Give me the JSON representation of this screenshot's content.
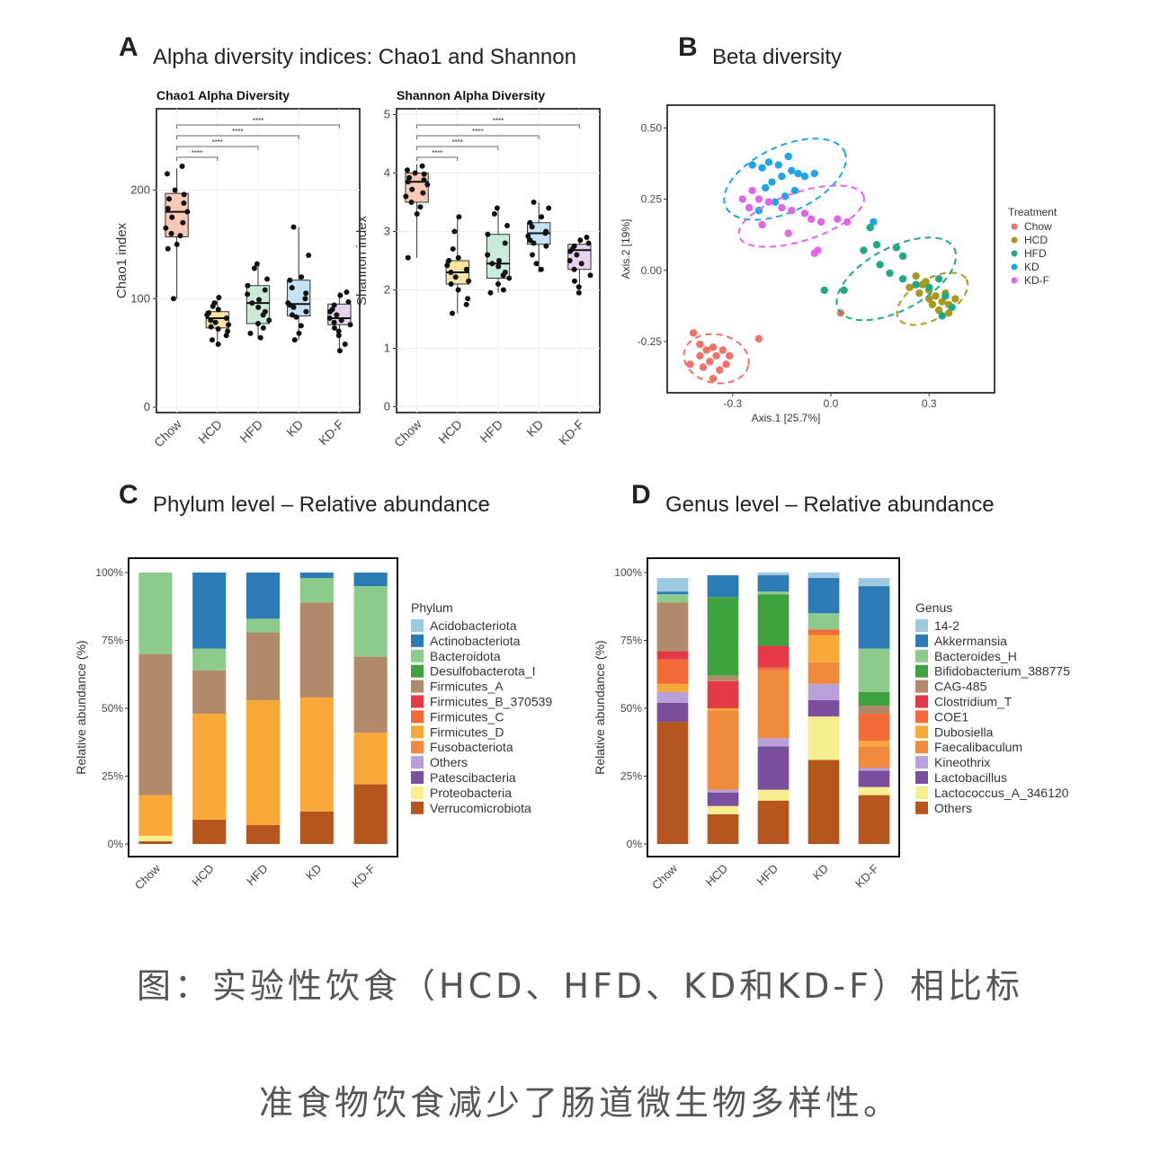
{
  "panels": {
    "a": {
      "letter": "A",
      "title": "Alpha  diversity indices: Chao1 and Shannon"
    },
    "b": {
      "letter": "B",
      "title": "Beta diversity"
    },
    "c": {
      "letter": "C",
      "title": "Phylum   level – Relative  abundance"
    },
    "d": {
      "letter": "D",
      "title": "Genus   level – Relative  abundance"
    }
  },
  "caption": {
    "line1": "图：实验性饮食（HCD、HFD、KD和KD-F）相比标",
    "line2": "准食物饮食减少了肠道微生物多样性。"
  },
  "colors": {
    "Chow": "#F08080",
    "HCD": "#A89A1E",
    "HFD": "#22A884",
    "KD": "#1EA5E8",
    "KD-F": "#E066E8"
  },
  "chart_data": [
    {
      "id": "chao1",
      "type": "box",
      "title": "Chao1 Alpha Diversity",
      "ylabel": "Chao1 index",
      "categories": [
        "Chow",
        "HCD",
        "HFD",
        "KD",
        "KD-F"
      ],
      "ylim": [
        -5,
        275
      ],
      "yticks": [
        0,
        100,
        200
      ],
      "ytick_labels": [
        "0",
        "100",
        "200"
      ],
      "fills": [
        "#F9C9B6",
        "#F7E3A3",
        "#C9EBD9",
        "#C6E2F4",
        "#E6D4EE"
      ],
      "boxes": [
        {
          "min": 100,
          "q1": 157,
          "median": 180,
          "q3": 197,
          "max": 220
        },
        {
          "min": 57,
          "q1": 73,
          "median": 82,
          "q3": 88,
          "max": 100
        },
        {
          "min": 63,
          "q1": 77,
          "median": 96,
          "q3": 112,
          "max": 133
        },
        {
          "min": 62,
          "q1": 84,
          "median": 95,
          "q3": 117,
          "max": 166
        },
        {
          "min": 52,
          "q1": 76,
          "median": 82,
          "q3": 95,
          "max": 106
        }
      ],
      "points": [
        [
          222,
          215,
          200,
          196,
          192,
          188,
          183,
          180,
          175,
          170,
          165,
          160,
          158,
          150,
          146,
          100
        ],
        [
          101,
          96,
          93,
          90,
          87,
          85,
          82,
          80,
          78,
          76,
          74,
          72,
          70,
          66,
          62,
          58
        ],
        [
          132,
          128,
          118,
          112,
          108,
          104,
          99,
          96,
          92,
          88,
          85,
          80,
          77,
          73,
          68,
          64
        ],
        [
          166,
          140,
          120,
          117,
          110,
          105,
          100,
          96,
          94,
          92,
          88,
          85,
          83,
          75,
          68,
          62
        ],
        [
          106,
          103,
          97,
          94,
          90,
          88,
          85,
          82,
          80,
          78,
          76,
          73,
          70,
          66,
          58,
          52
        ]
      ],
      "significance": [
        {
          "from": 0,
          "to": 1,
          "label": "****"
        },
        {
          "from": 0,
          "to": 2,
          "label": "****"
        },
        {
          "from": 0,
          "to": 3,
          "label": "****"
        },
        {
          "from": 0,
          "to": 4,
          "label": "****"
        }
      ]
    },
    {
      "id": "shannon",
      "type": "box",
      "title": "Shannon Alpha Diversity",
      "ylabel": "Shannon index",
      "categories": [
        "Chow",
        "HCD",
        "HFD",
        "KD",
        "KD-F"
      ],
      "ylim": [
        -0.1,
        5.1
      ],
      "yticks": [
        0,
        1,
        2,
        3,
        4,
        5
      ],
      "ytick_labels": [
        "0",
        "1",
        "2",
        "3",
        "4",
        "5"
      ],
      "fills": [
        "#F9C9B6",
        "#F7E3A3",
        "#C9EBD9",
        "#C6E2F4",
        "#E6D4EE"
      ],
      "boxes": [
        {
          "min": 2.55,
          "q1": 3.5,
          "median": 3.85,
          "q3": 4.0,
          "max": 4.15
        },
        {
          "min": 1.6,
          "q1": 2.1,
          "median": 2.3,
          "q3": 2.5,
          "max": 3.25
        },
        {
          "min": 1.95,
          "q1": 2.2,
          "median": 2.45,
          "q3": 2.95,
          "max": 3.4
        },
        {
          "min": 2.3,
          "q1": 2.78,
          "median": 2.97,
          "q3": 3.15,
          "max": 3.5
        },
        {
          "min": 1.95,
          "q1": 2.35,
          "median": 2.68,
          "q3": 2.78,
          "max": 2.9
        }
      ],
      "points": [
        [
          4.12,
          4.05,
          4.0,
          3.98,
          3.92,
          3.88,
          3.85,
          3.8,
          3.72,
          3.66,
          3.6,
          3.5,
          3.42,
          3.3,
          2.55
        ],
        [
          3.25,
          3.0,
          2.7,
          2.55,
          2.5,
          2.42,
          2.35,
          2.3,
          2.22,
          2.15,
          2.1,
          2.0,
          1.85,
          1.75,
          1.6
        ],
        [
          3.4,
          3.3,
          3.1,
          2.95,
          2.8,
          2.6,
          2.5,
          2.45,
          2.4,
          2.3,
          2.25,
          2.2,
          2.1,
          2.0,
          1.95
        ],
        [
          3.5,
          3.4,
          3.25,
          3.15,
          3.08,
          3.0,
          2.97,
          2.92,
          2.85,
          2.8,
          2.75,
          2.6,
          2.45,
          2.35
        ],
        [
          2.9,
          2.85,
          2.8,
          2.75,
          2.7,
          2.66,
          2.6,
          2.5,
          2.45,
          2.35,
          2.25,
          2.15,
          2.05,
          1.95
        ]
      ],
      "significance": [
        {
          "from": 0,
          "to": 1,
          "label": "****"
        },
        {
          "from": 0,
          "to": 2,
          "label": "****"
        },
        {
          "from": 0,
          "to": 3,
          "label": "****"
        },
        {
          "from": 0,
          "to": 4,
          "label": "****"
        }
      ]
    },
    {
      "id": "beta",
      "type": "scatter",
      "xlabel": "Axis.1   [25.7%]",
      "ylabel": "Axis.2   [19%]",
      "xlim": [
        -0.5,
        0.5
      ],
      "ylim": [
        -0.43,
        0.58
      ],
      "xticks": [
        -0.3,
        0.0,
        0.3
      ],
      "xtick_labels": [
        "-0.3",
        "0.0",
        "0.3"
      ],
      "yticks": [
        -0.25,
        0.0,
        0.25,
        0.5
      ],
      "ytick_labels": [
        "-0.25",
        "0.00",
        "0.25",
        "0.50"
      ],
      "legend_title": "Treatment",
      "series": [
        {
          "name": "Chow",
          "color": "#F07167",
          "points": [
            [
              -0.42,
              -0.22
            ],
            [
              -0.4,
              -0.26
            ],
            [
              -0.38,
              -0.28
            ],
            [
              -0.36,
              -0.27
            ],
            [
              -0.35,
              -0.3
            ],
            [
              -0.37,
              -0.32
            ],
            [
              -0.39,
              -0.34
            ],
            [
              -0.34,
              -0.35
            ],
            [
              -0.32,
              -0.33
            ],
            [
              -0.31,
              -0.3
            ],
            [
              -0.33,
              -0.28
            ],
            [
              -0.4,
              -0.3
            ],
            [
              -0.43,
              -0.33
            ],
            [
              -0.22,
              -0.24
            ],
            [
              -0.36,
              -0.38
            ],
            [
              0.03,
              -0.15
            ]
          ],
          "ellipse": {
            "cx": -0.35,
            "cy": -0.31,
            "rx": 0.1,
            "ry": 0.085,
            "rot": 12
          }
        },
        {
          "name": "HCD",
          "color": "#A89A1E",
          "points": [
            [
              0.26,
              -0.02
            ],
            [
              0.28,
              -0.05
            ],
            [
              0.3,
              -0.07
            ],
            [
              0.32,
              -0.09
            ],
            [
              0.34,
              -0.11
            ],
            [
              0.36,
              -0.12
            ],
            [
              0.33,
              -0.14
            ],
            [
              0.3,
              -0.1
            ],
            [
              0.27,
              -0.08
            ],
            [
              0.35,
              -0.08
            ],
            [
              0.38,
              -0.1
            ],
            [
              0.31,
              -0.12
            ],
            [
              0.29,
              -0.04
            ],
            [
              0.24,
              -0.06
            ],
            [
              0.36,
              -0.15
            ]
          ],
          "ellipse": {
            "cx": 0.31,
            "cy": -0.1,
            "rx": 0.12,
            "ry": 0.07,
            "rot": -30
          }
        },
        {
          "name": "HFD",
          "color": "#22A884",
          "points": [
            [
              0.14,
              0.09
            ],
            [
              0.2,
              0.08
            ],
            [
              0.22,
              0.05
            ],
            [
              0.15,
              0.02
            ],
            [
              0.18,
              -0.01
            ],
            [
              0.22,
              -0.03
            ],
            [
              0.26,
              -0.05
            ],
            [
              0.3,
              -0.06
            ],
            [
              0.33,
              -0.03
            ],
            [
              0.35,
              -0.09
            ],
            [
              0.37,
              -0.13
            ],
            [
              0.34,
              -0.16
            ],
            [
              0.04,
              -0.07
            ],
            [
              -0.02,
              -0.07
            ],
            [
              0.12,
              0.15
            ],
            [
              0.1,
              0.07
            ]
          ],
          "ellipse": {
            "cx": 0.2,
            "cy": -0.03,
            "rx": 0.2,
            "ry": 0.11,
            "rot": -28
          }
        },
        {
          "name": "KD",
          "color": "#1EA5E8",
          "points": [
            [
              -0.24,
              0.37
            ],
            [
              -0.21,
              0.36
            ],
            [
              -0.19,
              0.38
            ],
            [
              -0.16,
              0.37
            ],
            [
              -0.13,
              0.4
            ],
            [
              -0.12,
              0.35
            ],
            [
              -0.15,
              0.33
            ],
            [
              -0.18,
              0.31
            ],
            [
              -0.2,
              0.29
            ],
            [
              -0.11,
              0.28
            ],
            [
              -0.1,
              0.34
            ],
            [
              -0.08,
              0.33
            ],
            [
              -0.14,
              0.26
            ],
            [
              -0.17,
              0.24
            ],
            [
              -0.22,
              0.21
            ],
            [
              0.13,
              0.17
            ],
            [
              -0.05,
              0.34
            ]
          ],
          "ellipse": {
            "cx": -0.14,
            "cy": 0.32,
            "rx": 0.2,
            "ry": 0.115,
            "rot": -25
          }
        },
        {
          "name": "KD-F",
          "color": "#E066E8",
          "points": [
            [
              -0.24,
              0.28
            ],
            [
              -0.22,
              0.25
            ],
            [
              -0.25,
              0.22
            ],
            [
              -0.19,
              0.24
            ],
            [
              -0.15,
              0.22
            ],
            [
              -0.12,
              0.21
            ],
            [
              -0.08,
              0.2
            ],
            [
              -0.06,
              0.18
            ],
            [
              -0.03,
              0.17
            ],
            [
              0.02,
              0.18
            ],
            [
              0.05,
              0.17
            ],
            [
              -0.04,
              0.07
            ],
            [
              -0.05,
              0.06
            ],
            [
              -0.13,
              0.13
            ],
            [
              -0.21,
              0.16
            ],
            [
              -0.27,
              0.25
            ]
          ],
          "ellipse": {
            "cx": -0.09,
            "cy": 0.19,
            "rx": 0.2,
            "ry": 0.085,
            "rot": -18
          }
        }
      ]
    },
    {
      "id": "phylum",
      "type": "stacked_bar",
      "ylabel": "Relative abundance (%)",
      "categories": [
        "Chow",
        "HCD",
        "HFD",
        "KD",
        "KD-F"
      ],
      "yticks": [
        0,
        25,
        50,
        75,
        100
      ],
      "ytick_labels": [
        "0%",
        "25%",
        "50%",
        "75%",
        "100%"
      ],
      "legend_title": "Phylum",
      "series": [
        {
          "name": "Acidobacteriota",
          "color": "#9ECAE1",
          "values": [
            0,
            0,
            0,
            0,
            0
          ]
        },
        {
          "name": "Actinobacteriota",
          "color": "#2C7BB6",
          "values": [
            0,
            28,
            17,
            2,
            5
          ]
        },
        {
          "name": "Bacteroidota",
          "color": "#8CCB8C",
          "values": [
            30,
            8,
            5,
            9,
            26
          ]
        },
        {
          "name": "Desulfobacterota_I",
          "color": "#3EA23E",
          "values": [
            0,
            0,
            0,
            0,
            0
          ]
        },
        {
          "name": "Firmicutes_A",
          "color": "#B08A6A",
          "values": [
            52,
            16,
            25,
            35,
            28
          ]
        },
        {
          "name": "Firmicutes_B_370539",
          "color": "#E63946",
          "values": [
            0,
            0,
            0,
            0,
            0
          ]
        },
        {
          "name": "Firmicutes_C",
          "color": "#F26B38",
          "values": [
            0,
            0,
            0,
            0,
            0
          ]
        },
        {
          "name": "Firmicutes_D",
          "color": "#F8A939",
          "values": [
            15,
            39,
            46,
            42,
            19
          ]
        },
        {
          "name": "Fusobacteriota",
          "color": "#F08A3C",
          "values": [
            0,
            0,
            0,
            0,
            0
          ]
        },
        {
          "name": "Others",
          "color": "#B8A0D8",
          "values": [
            0,
            0,
            0,
            0,
            0
          ]
        },
        {
          "name": "Patescibacteria",
          "color": "#7A4F9E",
          "values": [
            0,
            0,
            0,
            0,
            0
          ]
        },
        {
          "name": "Proteobacteria",
          "color": "#F7EE8F",
          "values": [
            2,
            0,
            0,
            0,
            0
          ]
        },
        {
          "name": "Verrucomicrobiota",
          "color": "#B5561E",
          "values": [
            1,
            9,
            7,
            12,
            22
          ]
        }
      ]
    },
    {
      "id": "genus",
      "type": "stacked_bar",
      "ylabel": "Relative abundance (%)",
      "categories": [
        "Chow",
        "HCD",
        "HFD",
        "KD",
        "KD-F"
      ],
      "yticks": [
        0,
        25,
        50,
        75,
        100
      ],
      "ytick_labels": [
        "0%",
        "25%",
        "50%",
        "75%",
        "100%"
      ],
      "legend_title": "Genus",
      "series": [
        {
          "name": "14-2",
          "color": "#9ECAE1",
          "values": [
            5,
            0,
            1,
            2,
            3
          ]
        },
        {
          "name": "Akkermansia",
          "color": "#2C7BB6",
          "values": [
            1,
            8,
            6,
            13,
            23
          ]
        },
        {
          "name": "Bacteroides_H",
          "color": "#8CCB8C",
          "values": [
            3,
            0,
            1,
            6,
            16
          ]
        },
        {
          "name": "Bifidobacterium_388775",
          "color": "#3EA23E",
          "values": [
            0,
            29,
            19,
            0,
            5
          ]
        },
        {
          "name": "CAG-485",
          "color": "#B08A6A",
          "values": [
            18,
            2,
            0,
            0,
            3
          ]
        },
        {
          "name": "Clostridium_T",
          "color": "#E63946",
          "values": [
            3,
            10,
            8,
            0,
            0
          ]
        },
        {
          "name": "COE1",
          "color": "#F26B38",
          "values": [
            9,
            0,
            1,
            2,
            10
          ]
        },
        {
          "name": "Dubosiella",
          "color": "#F8A939",
          "values": [
            3,
            1,
            0,
            10,
            2
          ]
        },
        {
          "name": "Faecalibaculum",
          "color": "#F08A3C",
          "values": [
            0,
            29,
            25,
            8,
            8
          ]
        },
        {
          "name": "Kineothrix",
          "color": "#B8A0D8",
          "values": [
            4,
            1,
            3,
            6,
            1
          ]
        },
        {
          "name": "Lactobacillus",
          "color": "#7A4F9E",
          "values": [
            7,
            5,
            16,
            6,
            6
          ]
        },
        {
          "name": "Lactococcus_A_346120",
          "color": "#F7EE8F",
          "values": [
            0,
            3,
            4,
            16,
            3
          ]
        },
        {
          "name": "Others",
          "color": "#B5561E",
          "values": [
            45,
            11,
            16,
            31,
            18
          ]
        }
      ]
    }
  ]
}
